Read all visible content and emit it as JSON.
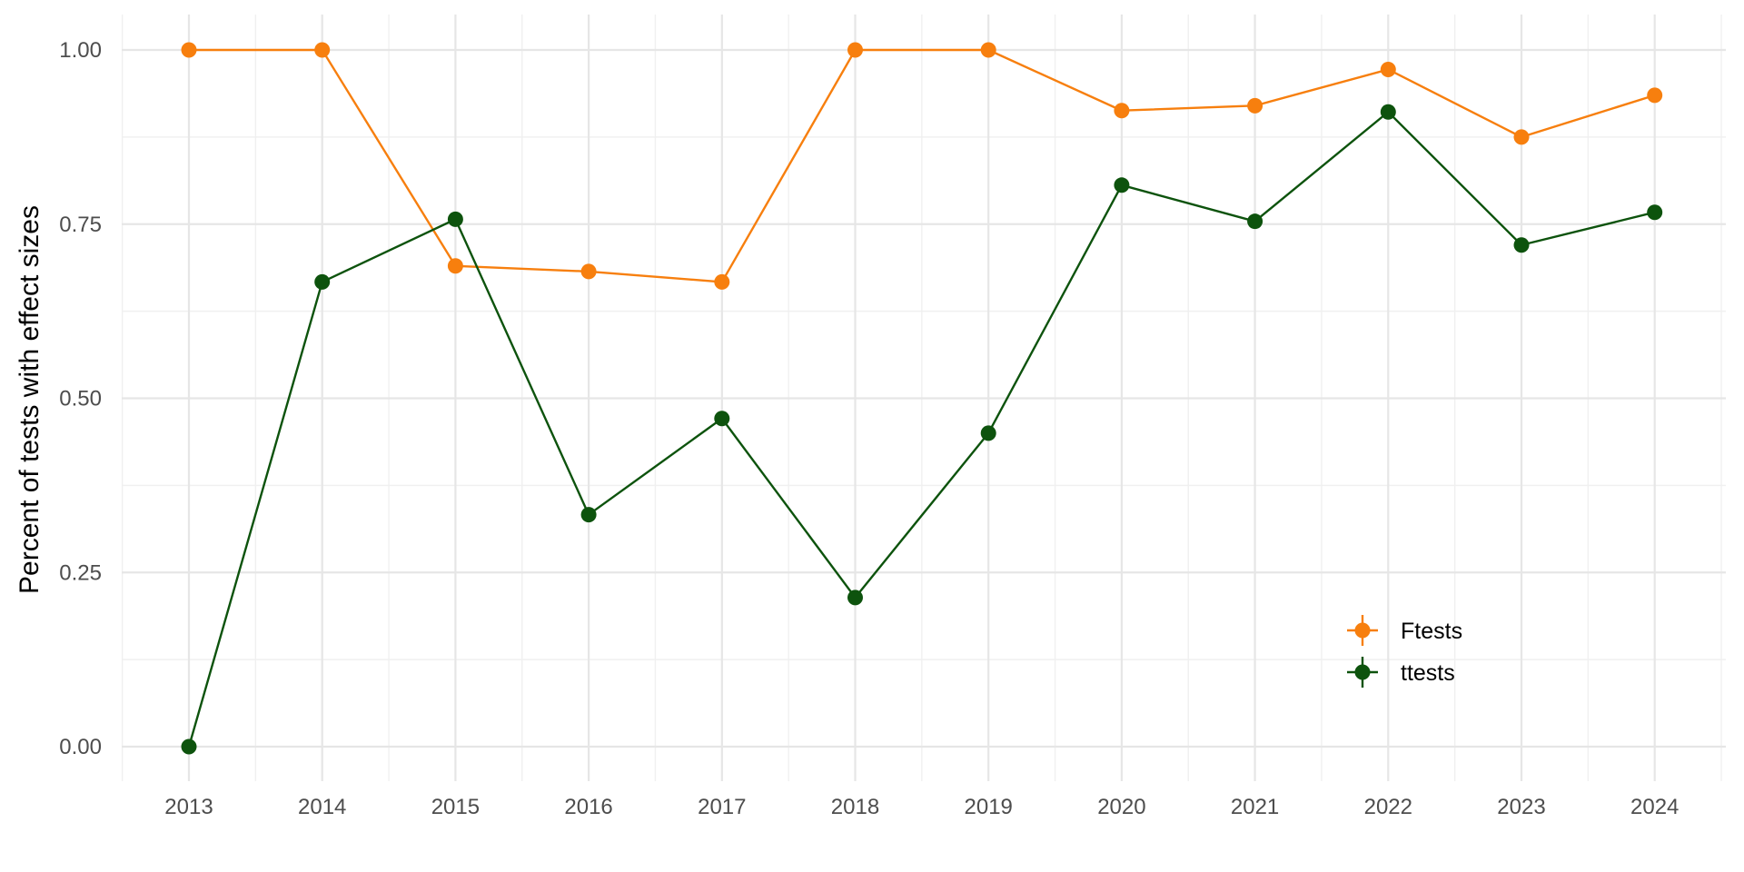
{
  "chart_data": {
    "type": "line",
    "title": "",
    "xlabel": "",
    "ylabel": "Percent of tests with effect sizes",
    "x": [
      2013,
      2014,
      2015,
      2016,
      2017,
      2018,
      2019,
      2020,
      2021,
      2022,
      2023,
      2024
    ],
    "x_tick_labels": [
      "2013",
      "2014",
      "2015",
      "2016",
      "2017",
      "2018",
      "2019",
      "2020",
      "2021",
      "2022",
      "2023",
      "2024"
    ],
    "y_ticks": [
      0,
      0.25,
      0.5,
      0.75,
      1.0
    ],
    "y_tick_labels": [
      "0.00",
      "0.25",
      "0.50",
      "0.75",
      "1.00"
    ],
    "xlim": [
      2012.5,
      2024.5
    ],
    "ylim": [
      -0.05,
      1.05
    ],
    "grid": true,
    "legend_position": "bottom-right",
    "series": [
      {
        "name": "Ftests",
        "color": "#f77f0e",
        "values": [
          1.0,
          1.0,
          0.69,
          0.682,
          0.667,
          1.0,
          1.0,
          0.913,
          0.92,
          0.972,
          0.875,
          0.935
        ]
      },
      {
        "name": "ttests",
        "color": "#0d530d",
        "values": [
          0.0,
          0.667,
          0.757,
          0.333,
          0.471,
          0.214,
          0.45,
          0.806,
          0.754,
          0.911,
          0.72,
          0.767
        ]
      }
    ]
  }
}
